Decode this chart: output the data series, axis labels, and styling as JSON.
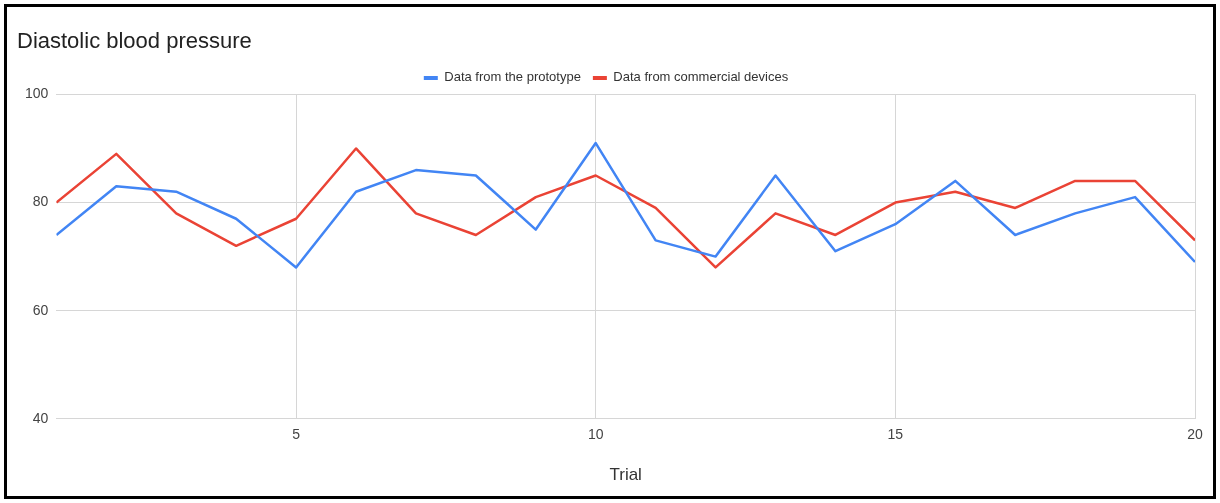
{
  "chart_data": {
    "type": "line",
    "title": "Diastolic blood pressure",
    "xlabel": "Trial",
    "x": [
      1,
      2,
      3,
      4,
      5,
      6,
      7,
      8,
      9,
      10,
      11,
      12,
      13,
      14,
      15,
      16,
      17,
      18,
      19,
      20
    ],
    "series": [
      {
        "name": "Data from the prototype",
        "color": "#4285f4",
        "values": [
          74,
          83,
          82,
          77,
          68,
          82,
          86,
          85,
          75,
          91,
          73,
          70,
          85,
          71,
          76,
          84,
          74,
          78,
          81,
          69
        ]
      },
      {
        "name": "Data from commercial devices",
        "color": "#ea4335",
        "values": [
          80,
          89,
          78,
          72,
          77,
          90,
          78,
          74,
          81,
          85,
          79,
          68,
          78,
          74,
          80,
          82,
          79,
          84,
          84,
          73
        ]
      }
    ],
    "xlim": [
      1,
      20
    ],
    "xticks": [
      5,
      10,
      15,
      20
    ],
    "ylim": [
      40,
      100
    ],
    "yticks": [
      40,
      60,
      80,
      100
    ],
    "grid": true,
    "legend": "top",
    "marker": "none",
    "line_style": "solid"
  }
}
